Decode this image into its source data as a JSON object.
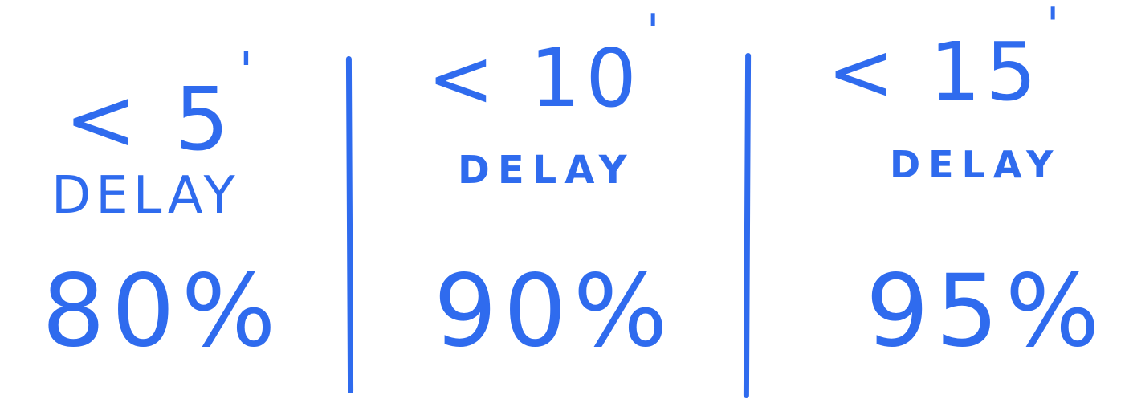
{
  "colors": {
    "ink": "#2F6BEE",
    "background": "#FFFFFF"
  },
  "columns": [
    {
      "threshold": "< 5",
      "prime": "'",
      "delay_label": "DELAY",
      "percentage": "80%"
    },
    {
      "threshold": "< 10",
      "prime": "'",
      "delay_label": "DELAY",
      "percentage": "90%"
    },
    {
      "threshold": "< 15",
      "prime": "'",
      "delay_label": "DELAY",
      "percentage": "95%"
    }
  ]
}
